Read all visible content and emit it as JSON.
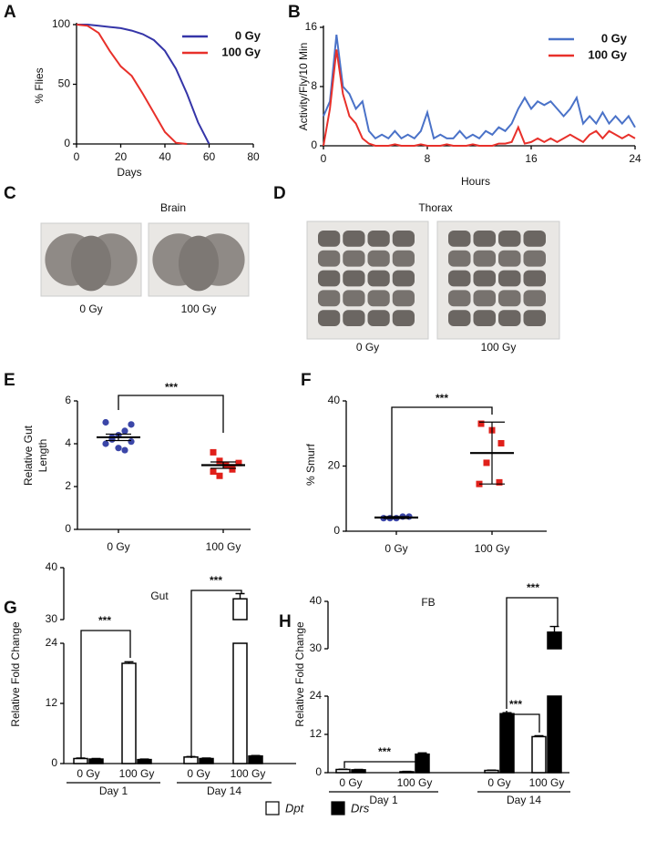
{
  "chart_data": [
    {
      "label": "A",
      "type": "line",
      "xlabel": "Days",
      "ylabel": "% Flies",
      "x": [
        0,
        5,
        10,
        15,
        20,
        25,
        30,
        35,
        40,
        45,
        50,
        55,
        60
      ],
      "xlim": [
        0,
        80
      ],
      "xticks": [
        0,
        20,
        40,
        60,
        80
      ],
      "ylim": [
        0,
        100
      ],
      "yticks": [
        0,
        50,
        100
      ],
      "series": [
        {
          "name": "0 Gy",
          "color": "#3535a8",
          "values": [
            100,
            100,
            99,
            98,
            97,
            95,
            92,
            87,
            78,
            63,
            42,
            18,
            0
          ]
        },
        {
          "name": "100 Gy",
          "color": "#e8302a",
          "values": [
            100,
            99,
            93,
            78,
            65,
            57,
            42,
            26,
            10,
            1,
            0,
            null,
            null
          ]
        }
      ]
    },
    {
      "label": "B",
      "type": "line",
      "xlabel": "Hours",
      "ylabel": "Activity/Fly/10 Min",
      "x": [
        0,
        0.5,
        1,
        1.5,
        2,
        2.5,
        3,
        3.5,
        4,
        4.5,
        5,
        5.5,
        6,
        6.5,
        7,
        7.5,
        8,
        8.5,
        9,
        9.5,
        10,
        10.5,
        11,
        11.5,
        12,
        12.5,
        13,
        13.5,
        14,
        14.5,
        15,
        15.5,
        16,
        16.5,
        17,
        17.5,
        18,
        18.5,
        19,
        19.5,
        20,
        20.5,
        21,
        21.5,
        22,
        22.5,
        23,
        23.5,
        24
      ],
      "xlim": [
        0,
        24
      ],
      "xticks": [
        0,
        8,
        16,
        24
      ],
      "ylim": [
        0,
        16
      ],
      "yticks": [
        0,
        8,
        16
      ],
      "series": [
        {
          "name": "0 Gy",
          "color": "#4a72c8",
          "values": [
            4,
            6,
            15,
            8,
            7,
            5,
            6,
            2,
            1,
            1.5,
            1,
            2,
            1,
            1.5,
            1,
            2,
            4.5,
            1,
            1.5,
            1,
            1,
            2,
            1,
            1.5,
            1,
            2,
            1.5,
            2.5,
            2,
            3,
            5,
            6.5,
            5,
            6,
            5.5,
            6,
            5,
            4,
            5,
            6.5,
            3,
            4,
            3,
            4.5,
            3,
            4,
            3,
            4,
            2.5
          ]
        },
        {
          "name": "100 Gy",
          "color": "#e8302a",
          "values": [
            0,
            5,
            13,
            7,
            4,
            3,
            1,
            0.3,
            0,
            0,
            0,
            0.2,
            0,
            0,
            0,
            0.2,
            0,
            0,
            0,
            0.2,
            0,
            0,
            0,
            0.2,
            0,
            0,
            0,
            0.3,
            0.3,
            0.5,
            2.5,
            0.3,
            0.5,
            1,
            0.5,
            1,
            0.5,
            1,
            1.5,
            1,
            0.5,
            1.5,
            2,
            1,
            2,
            1.5,
            1,
            1.5,
            1
          ]
        }
      ]
    },
    {
      "label": "E",
      "type": "dot",
      "ylabel": [
        "Relative Gut",
        "Length"
      ],
      "categories": [
        "0 Gy",
        "100 Gy"
      ],
      "ylim": [
        0,
        6
      ],
      "yticks": [
        0,
        2,
        4,
        6
      ],
      "annotation": "***",
      "groups": [
        {
          "color": "#3b46a8",
          "values": [
            4.0,
            4.2,
            4.4,
            4.6,
            4.9,
            5.0,
            4.3,
            3.8,
            3.7,
            4.1
          ],
          "mean": 4.3,
          "error": 0.15
        },
        {
          "color": "#e0201a",
          "values": [
            3.6,
            3.2,
            3.0,
            2.9,
            3.1,
            2.7,
            2.5,
            3.0,
            2.8
          ],
          "mean": 3.0,
          "error": 0.15
        }
      ]
    },
    {
      "label": "F",
      "type": "dot",
      "ylabel": [
        "% Smurf"
      ],
      "categories": [
        "0 Gy",
        "100 Gy"
      ],
      "ylim": [
        0,
        40
      ],
      "yticks": [
        0,
        20,
        40
      ],
      "annotation": "***",
      "groups": [
        {
          "color": "#3b46a8",
          "values": [
            4,
            4,
            4,
            4.5,
            4.5
          ],
          "mean": 4.2,
          "error": 0.3
        },
        {
          "color": "#e0201a",
          "values": [
            33,
            31,
            27,
            21,
            15,
            14.5
          ],
          "mean": 24,
          "error": 9.5
        }
      ]
    },
    {
      "label": "G",
      "type": "bar",
      "title": "Gut",
      "ylabel": "Relative Fold Change",
      "groups": [
        "Day 1",
        "Day 14"
      ],
      "categories": [
        "0 Gy",
        "100 Gy",
        "0 Gy",
        "100 Gy"
      ],
      "ylim": [
        0,
        40
      ],
      "ybreak": [
        24,
        30
      ],
      "yticks": [
        0,
        12,
        24,
        30,
        40
      ],
      "annotations": [
        "***",
        "***"
      ],
      "series": [
        {
          "values": [
            1,
            20,
            1.3,
            34
          ],
          "errors": [
            0.1,
            0.3,
            0.1,
            1.0
          ]
        },
        {
          "values": [
            0.9,
            0.8,
            1.0,
            1.5
          ],
          "errors": [
            0.1,
            0.1,
            0.1,
            0.1
          ]
        }
      ]
    },
    {
      "label": "H",
      "type": "bar",
      "title": "FB",
      "ylabel": "Relative Fold Change",
      "groups": [
        "Day 1",
        "Day 14"
      ],
      "categories": [
        "0 Gy",
        "100 Gy",
        "0 Gy",
        "100 Gy"
      ],
      "ylim": [
        0,
        40
      ],
      "ybreak": [
        24,
        30
      ],
      "yticks": [
        0,
        12,
        24,
        30,
        40
      ],
      "annotations": [
        "***",
        "***",
        "***"
      ],
      "series": [
        {
          "values": [
            1,
            0.3,
            0.7,
            11.3
          ],
          "errors": [
            0.1,
            0.1,
            0.1,
            0.3
          ]
        },
        {
          "values": [
            0.9,
            5.8,
            18.5,
            33.5
          ],
          "errors": [
            0.1,
            0.4,
            0.3,
            1.2
          ]
        }
      ]
    }
  ],
  "images": [
    {
      "label": "C",
      "title": "Brain",
      "captions": [
        "0 Gy",
        "100 Gy"
      ]
    },
    {
      "label": "D",
      "title": "Thorax",
      "captions": [
        "0 Gy",
        "100 Gy"
      ]
    }
  ],
  "legend": [
    {
      "name": "Dpt",
      "color": "#ffffff"
    },
    {
      "name": "Drs",
      "color": "#000000"
    }
  ]
}
